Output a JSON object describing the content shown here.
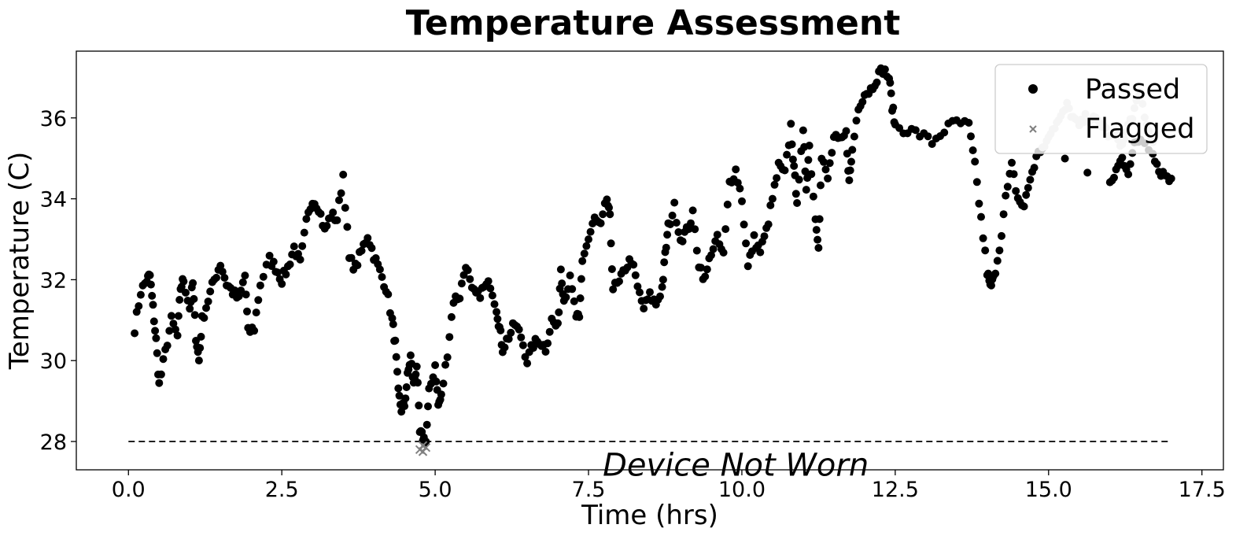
{
  "chart_data": {
    "type": "scatter",
    "title": "Temperature Assessment",
    "xlabel": "Time (hrs)",
    "ylabel": "Temperature (C)",
    "xlim": [
      -0.85,
      17.85
    ],
    "ylim": [
      27.3,
      37.65
    ],
    "xticks": [
      0.0,
      2.5,
      5.0,
      7.5,
      10.0,
      12.5,
      15.0,
      17.5
    ],
    "xtick_labels": [
      "0.0",
      "2.5",
      "5.0",
      "7.5",
      "10.0",
      "12.5",
      "15.0",
      "17.5"
    ],
    "yticks": [
      28,
      30,
      32,
      34,
      36
    ],
    "ytick_labels": [
      "28",
      "30",
      "32",
      "34",
      "36"
    ],
    "grid": false,
    "legend_position": "top-right",
    "threshold": {
      "y": 28,
      "x_range": [
        0,
        17
      ],
      "style": "dashed",
      "color": "#000000"
    },
    "annotations": [
      {
        "text": "Device Not Worn",
        "x": 9.9,
        "y": 27.15
      }
    ],
    "colors": {
      "passed": "#000000",
      "flagged": "#808080",
      "not_worn": "#cccccc"
    },
    "series": [
      {
        "name": "Passed",
        "marker": "circle",
        "color": "#000000",
        "trace": [
          [
            0.1,
            30.8
          ],
          [
            0.2,
            31.7
          ],
          [
            0.3,
            32.0
          ],
          [
            0.35,
            32.1
          ],
          [
            0.4,
            31.3
          ],
          [
            0.45,
            30.5
          ],
          [
            0.5,
            29.4
          ],
          [
            0.6,
            30.2
          ],
          [
            0.7,
            31.0
          ],
          [
            0.8,
            30.6
          ],
          [
            0.85,
            31.8
          ],
          [
            0.9,
            32.0
          ],
          [
            1.0,
            31.3
          ],
          [
            1.05,
            31.9
          ],
          [
            1.1,
            30.6
          ],
          [
            1.15,
            30.0
          ],
          [
            1.2,
            31.0
          ],
          [
            1.3,
            31.5
          ],
          [
            1.4,
            32.0
          ],
          [
            1.5,
            32.4
          ],
          [
            1.6,
            31.9
          ],
          [
            1.7,
            31.7
          ],
          [
            1.8,
            31.5
          ],
          [
            1.9,
            32.1
          ],
          [
            1.95,
            30.7
          ],
          [
            2.05,
            30.8
          ],
          [
            2.15,
            31.9
          ],
          [
            2.3,
            32.5
          ],
          [
            2.4,
            32.3
          ],
          [
            2.5,
            32.0
          ],
          [
            2.6,
            32.3
          ],
          [
            2.7,
            32.8
          ],
          [
            2.8,
            32.4
          ],
          [
            2.9,
            33.4
          ],
          [
            3.0,
            34.0
          ],
          [
            3.1,
            33.8
          ],
          [
            3.2,
            33.2
          ],
          [
            3.3,
            33.6
          ],
          [
            3.4,
            33.5
          ],
          [
            3.5,
            34.6
          ],
          [
            3.6,
            32.5
          ],
          [
            3.7,
            32.3
          ],
          [
            3.8,
            32.7
          ],
          [
            3.9,
            33.1
          ],
          [
            4.0,
            32.6
          ],
          [
            4.1,
            32.2
          ],
          [
            4.2,
            31.8
          ],
          [
            4.3,
            31.0
          ],
          [
            4.35,
            30.4
          ],
          [
            4.4,
            29.2
          ],
          [
            4.45,
            28.8
          ],
          [
            4.5,
            28.9
          ],
          [
            4.55,
            29.6
          ],
          [
            4.6,
            30.1
          ],
          [
            4.65,
            29.4
          ],
          [
            4.7,
            29.9
          ],
          [
            4.75,
            28.2
          ],
          [
            4.8,
            28.1
          ],
          [
            4.85,
            28.0
          ],
          [
            4.9,
            29.2
          ],
          [
            5.0,
            29.9
          ],
          [
            5.05,
            28.9
          ],
          [
            5.1,
            29.1
          ],
          [
            5.2,
            30.2
          ],
          [
            5.3,
            31.5
          ],
          [
            5.4,
            31.6
          ],
          [
            5.5,
            32.4
          ],
          [
            5.6,
            31.7
          ],
          [
            5.7,
            31.6
          ],
          [
            5.8,
            31.8
          ],
          [
            5.9,
            31.9
          ],
          [
            6.0,
            31.3
          ],
          [
            6.05,
            30.8
          ],
          [
            6.1,
            30.3
          ],
          [
            6.2,
            30.6
          ],
          [
            6.3,
            30.9
          ],
          [
            6.4,
            30.6
          ],
          [
            6.5,
            30.0
          ],
          [
            6.6,
            30.4
          ],
          [
            6.7,
            30.5
          ],
          [
            6.8,
            30.3
          ],
          [
            6.9,
            31.0
          ],
          [
            7.0,
            30.8
          ],
          [
            7.05,
            32.3
          ],
          [
            7.1,
            31.5
          ],
          [
            7.2,
            32.0
          ],
          [
            7.3,
            31.1
          ],
          [
            7.35,
            31.0
          ],
          [
            7.4,
            32.5
          ],
          [
            7.5,
            33.0
          ],
          [
            7.6,
            33.5
          ],
          [
            7.7,
            33.3
          ],
          [
            7.8,
            34.0
          ],
          [
            7.85,
            33.5
          ],
          [
            7.9,
            31.8
          ],
          [
            8.0,
            31.9
          ],
          [
            8.1,
            32.3
          ],
          [
            8.2,
            32.5
          ],
          [
            8.3,
            31.8
          ],
          [
            8.4,
            31.3
          ],
          [
            8.5,
            31.6
          ],
          [
            8.6,
            31.4
          ],
          [
            8.7,
            31.8
          ],
          [
            8.75,
            32.6
          ],
          [
            8.8,
            33.3
          ],
          [
            8.9,
            33.8
          ],
          [
            9.0,
            33.0
          ],
          [
            9.1,
            33.2
          ],
          [
            9.2,
            33.6
          ],
          [
            9.3,
            32.4
          ],
          [
            9.4,
            32.0
          ],
          [
            9.5,
            32.7
          ],
          [
            9.6,
            33.0
          ],
          [
            9.7,
            32.6
          ],
          [
            9.8,
            34.4
          ],
          [
            9.9,
            34.7
          ],
          [
            10.0,
            34.0
          ],
          [
            10.1,
            32.3
          ],
          [
            10.2,
            33.0
          ],
          [
            10.3,
            32.7
          ],
          [
            10.4,
            33.2
          ],
          [
            10.5,
            34.0
          ],
          [
            10.6,
            34.8
          ],
          [
            10.7,
            34.6
          ],
          [
            10.8,
            35.8
          ],
          [
            10.85,
            34.7
          ],
          [
            10.9,
            34.0
          ],
          [
            11.0,
            35.6
          ],
          [
            11.05,
            34.3
          ],
          [
            11.1,
            35.3
          ],
          [
            11.2,
            33.5
          ],
          [
            11.25,
            32.9
          ],
          [
            11.3,
            35.0
          ],
          [
            11.4,
            34.5
          ],
          [
            11.5,
            35.5
          ],
          [
            11.6,
            35.4
          ],
          [
            11.7,
            35.6
          ],
          [
            11.75,
            34.4
          ],
          [
            11.8,
            35.2
          ],
          [
            11.9,
            36.3
          ],
          [
            12.0,
            36.6
          ],
          [
            12.1,
            36.7
          ],
          [
            12.2,
            37.0
          ],
          [
            12.3,
            37.2
          ],
          [
            12.4,
            37.0
          ],
          [
            12.45,
            36.3
          ],
          [
            12.5,
            35.8
          ],
          [
            12.7,
            35.7
          ],
          [
            12.9,
            35.6
          ],
          [
            13.1,
            35.4
          ],
          [
            13.3,
            35.7
          ],
          [
            13.5,
            35.9
          ],
          [
            13.7,
            35.8
          ],
          [
            13.8,
            34.8
          ],
          [
            13.9,
            33.5
          ],
          [
            14.0,
            32.2
          ],
          [
            14.05,
            31.8
          ],
          [
            14.1,
            32.0
          ],
          [
            14.2,
            32.8
          ],
          [
            14.3,
            34.0
          ],
          [
            14.4,
            34.8
          ],
          [
            14.5,
            34.0
          ],
          [
            14.6,
            33.8
          ],
          [
            14.7,
            34.5
          ],
          [
            14.8,
            35.0
          ],
          [
            14.9,
            35.3
          ],
          [
            16.0,
            34.3
          ],
          [
            16.1,
            34.7
          ],
          [
            16.2,
            35.0
          ],
          [
            16.3,
            34.7
          ],
          [
            16.4,
            35.3
          ],
          [
            16.5,
            35.5
          ],
          [
            16.7,
            35.2
          ],
          [
            16.8,
            34.7
          ],
          [
            16.9,
            34.6
          ],
          [
            17.0,
            34.5
          ]
        ]
      },
      {
        "name": "Flagged",
        "marker": "x",
        "color": "#808080",
        "points": [
          [
            4.75,
            27.8
          ],
          [
            4.8,
            27.75
          ],
          [
            4.8,
            27.9
          ],
          [
            4.85,
            27.85
          ]
        ]
      },
      {
        "name": "Device Not Worn",
        "marker": "circle",
        "color": "#cccccc",
        "trace": [
          [
            14.9,
            35.2
          ],
          [
            15.0,
            35.6
          ],
          [
            15.1,
            35.8
          ],
          [
            15.2,
            36.0
          ],
          [
            15.3,
            36.3
          ],
          [
            15.4,
            36.0
          ],
          [
            15.5,
            35.8
          ],
          [
            15.6,
            36.0
          ],
          [
            15.7,
            36.0
          ],
          [
            15.8,
            35.9
          ],
          [
            15.9,
            35.8
          ],
          [
            16.0,
            35.5
          ],
          [
            16.1,
            35.6
          ],
          [
            16.2,
            35.3
          ],
          [
            16.3,
            35.8
          ],
          [
            16.4,
            36.2
          ],
          [
            16.5,
            36.6
          ],
          [
            16.6,
            35.8
          ],
          [
            16.7,
            35.4
          ]
        ]
      }
    ]
  }
}
